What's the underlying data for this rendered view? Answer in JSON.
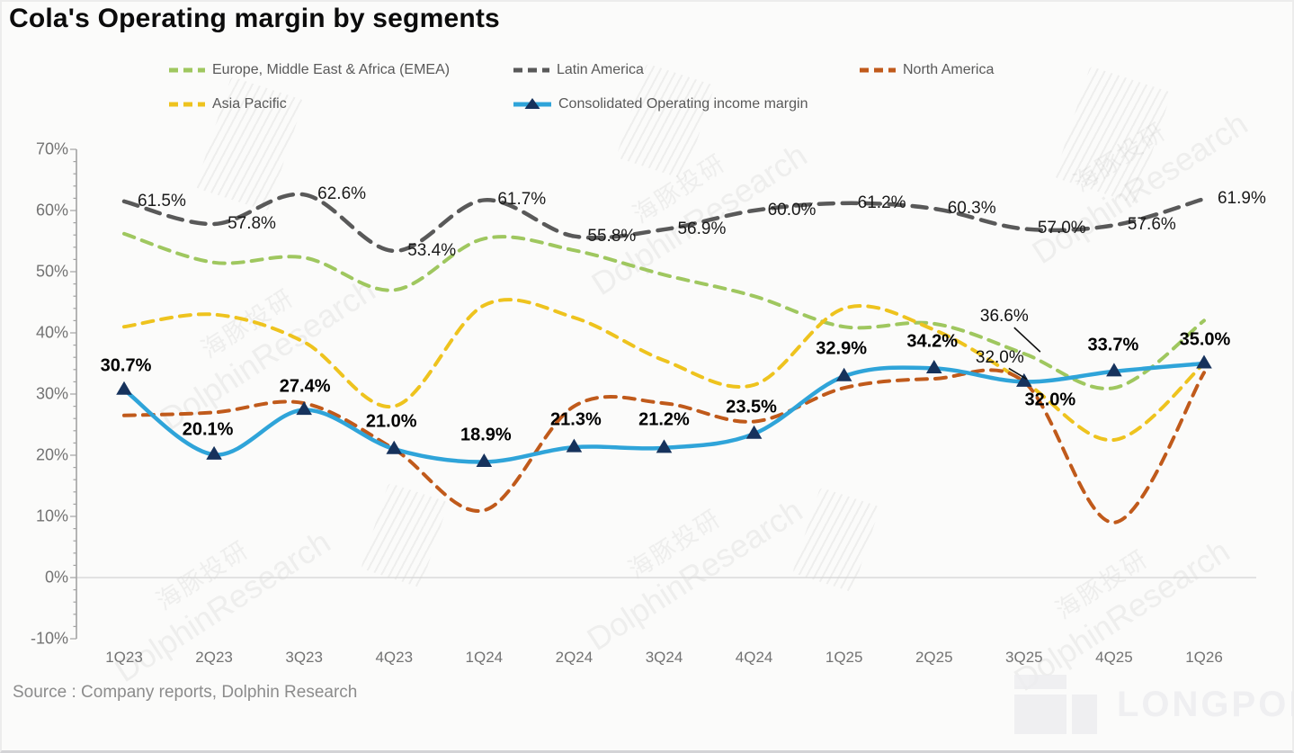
{
  "title": "Cola's Operating margin by segments",
  "source": "Source : Company reports, Dolphin Research",
  "watermark": {
    "line1": "海豚投研",
    "line2": "DolphinResearch"
  },
  "brand_logo": "LONGPORT",
  "legend": {
    "items": [
      {
        "label": "Europe, Middle East & Africa (EMEA)",
        "color": "#9fc75f",
        "type": "dashed"
      },
      {
        "label": "Latin America",
        "color": "#595959",
        "type": "dashed"
      },
      {
        "label": "North America",
        "color": "#c05a1b",
        "type": "dashed"
      },
      {
        "label": "Asia Pacific",
        "color": "#eec31e",
        "type": "dashed"
      },
      {
        "label": "Consolidated Operating income margin",
        "color": "#2fa4d9",
        "type": "line-triangle",
        "marker_color": "#16325c"
      }
    ]
  },
  "chart_data": {
    "type": "line",
    "title": "Cola's Operating margin by segments",
    "categories": [
      "1Q23",
      "2Q23",
      "3Q23",
      "4Q23",
      "1Q24",
      "2Q24",
      "3Q24",
      "4Q24",
      "1Q25",
      "2Q25",
      "3Q25",
      "4Q25",
      "1Q26"
    ],
    "y_axis": {
      "ticks": [
        "70%",
        "60%",
        "50%",
        "40%",
        "30%",
        "20%",
        "10%",
        "0%",
        "-10%"
      ],
      "max": 70,
      "min": -10,
      "major_step": 10,
      "minor_step": 2,
      "unit": "%"
    },
    "grid": "zero-line-only",
    "legend_position": "top",
    "series": [
      {
        "name": "Europe, Middle East & Africa (EMEA)",
        "color": "#9fc75f",
        "style": "dashed",
        "width": 4,
        "values": [
          56.2,
          51.5,
          52.3,
          47.0,
          55.4,
          53.5,
          49.5,
          46.0,
          41.0,
          41.5,
          36.6,
          31.0,
          42.0
        ],
        "data_labels": null
      },
      {
        "name": "Latin America",
        "color": "#595959",
        "style": "dashed",
        "width": 4.5,
        "values": [
          61.5,
          57.8,
          62.6,
          53.4,
          61.7,
          55.8,
          56.9,
          60.0,
          61.2,
          60.3,
          57.0,
          57.6,
          61.9
        ],
        "data_labels": [
          "61.5%",
          "57.8%",
          "62.6%",
          "53.4%",
          "61.7%",
          "55.8%",
          "56.9%",
          "60.0%",
          "61.2%",
          "60.3%",
          "57.0%",
          "57.6%",
          "61.9%"
        ]
      },
      {
        "name": "North America",
        "color": "#c05a1b",
        "style": "dashed",
        "width": 4,
        "values": [
          26.5,
          27.0,
          28.5,
          21.0,
          11.0,
          28.0,
          28.5,
          25.5,
          31.0,
          32.5,
          32.0,
          9.0,
          33.5
        ],
        "data_labels": null
      },
      {
        "name": "Asia Pacific",
        "color": "#eec31e",
        "style": "dashed",
        "width": 4,
        "values": [
          41.0,
          43.0,
          38.5,
          28.0,
          44.5,
          42.5,
          35.5,
          31.5,
          44.0,
          40.5,
          32.0,
          22.5,
          35.0
        ],
        "data_labels": null
      },
      {
        "name": "Consolidated Operating income margin",
        "color": "#2fa4d9",
        "style": "solid",
        "width": 4.5,
        "marker": "triangle",
        "marker_color": "#16325c",
        "values": [
          30.7,
          20.1,
          27.4,
          21.0,
          18.9,
          21.3,
          21.2,
          23.5,
          32.9,
          34.2,
          32.0,
          33.7,
          35.0
        ],
        "data_labels": [
          "30.7%",
          "20.1%",
          "27.4%",
          "21.0%",
          "18.9%",
          "21.3%",
          "21.2%",
          "23.5%",
          "32.9%",
          "34.2%",
          "32.0%",
          "33.7%",
          "35.0%"
        ]
      }
    ],
    "annotations": [
      {
        "text": "36.6%",
        "series": "Europe, Middle East & Africa (EMEA)",
        "category": "3Q25",
        "value": 36.6
      },
      {
        "text": "32.0%",
        "series": "North America",
        "category": "3Q25",
        "value": 32.0
      }
    ]
  }
}
